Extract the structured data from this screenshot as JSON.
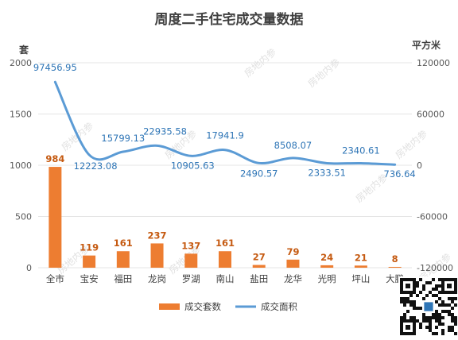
{
  "chart_data": {
    "type": "bar+line",
    "title": "周度二手住宅成交量数据",
    "y_left_unit": "套",
    "y_right_unit": "平方米",
    "y_left_ticks": [
      "0",
      "500",
      "1000",
      "1500",
      "2000"
    ],
    "y_right_ticks": [
      "-120000",
      "-60000",
      "0",
      "60000",
      "120000"
    ],
    "ylim_left": [
      0,
      2000
    ],
    "ylim_right": [
      -120000,
      120000
    ],
    "categories": [
      "全市",
      "宝安",
      "福田",
      "龙岗",
      "罗湖",
      "南山",
      "盐田",
      "龙华",
      "光明",
      "坪山",
      "大鹏"
    ],
    "series": [
      {
        "name": "成交套数",
        "type": "bar",
        "axis": "left",
        "color": "#ed7d31",
        "values": [
          984,
          119,
          161,
          237,
          137,
          161,
          27,
          79,
          24,
          21,
          8
        ],
        "labels": [
          "984",
          "119",
          "161",
          "237",
          "137",
          "161",
          "27",
          "79",
          "24",
          "21",
          "8"
        ]
      },
      {
        "name": "成交面积",
        "type": "line",
        "axis": "right",
        "color": "#5b9bd5",
        "values": [
          97456.95,
          12223.08,
          15799.13,
          22935.58,
          10905.63,
          17941.9,
          2490.57,
          8508.07,
          2333.51,
          2340.61,
          736.64
        ],
        "labels": [
          "97456.95",
          "12223.08",
          "15799.13",
          "22935.58",
          "10905.63",
          "17941.9",
          "2490.57",
          "8508.07",
          "2333.51",
          "2340.61",
          "736.64"
        ]
      }
    ],
    "legend_position": "bottom",
    "grid": true
  },
  "watermark": "房地内参"
}
